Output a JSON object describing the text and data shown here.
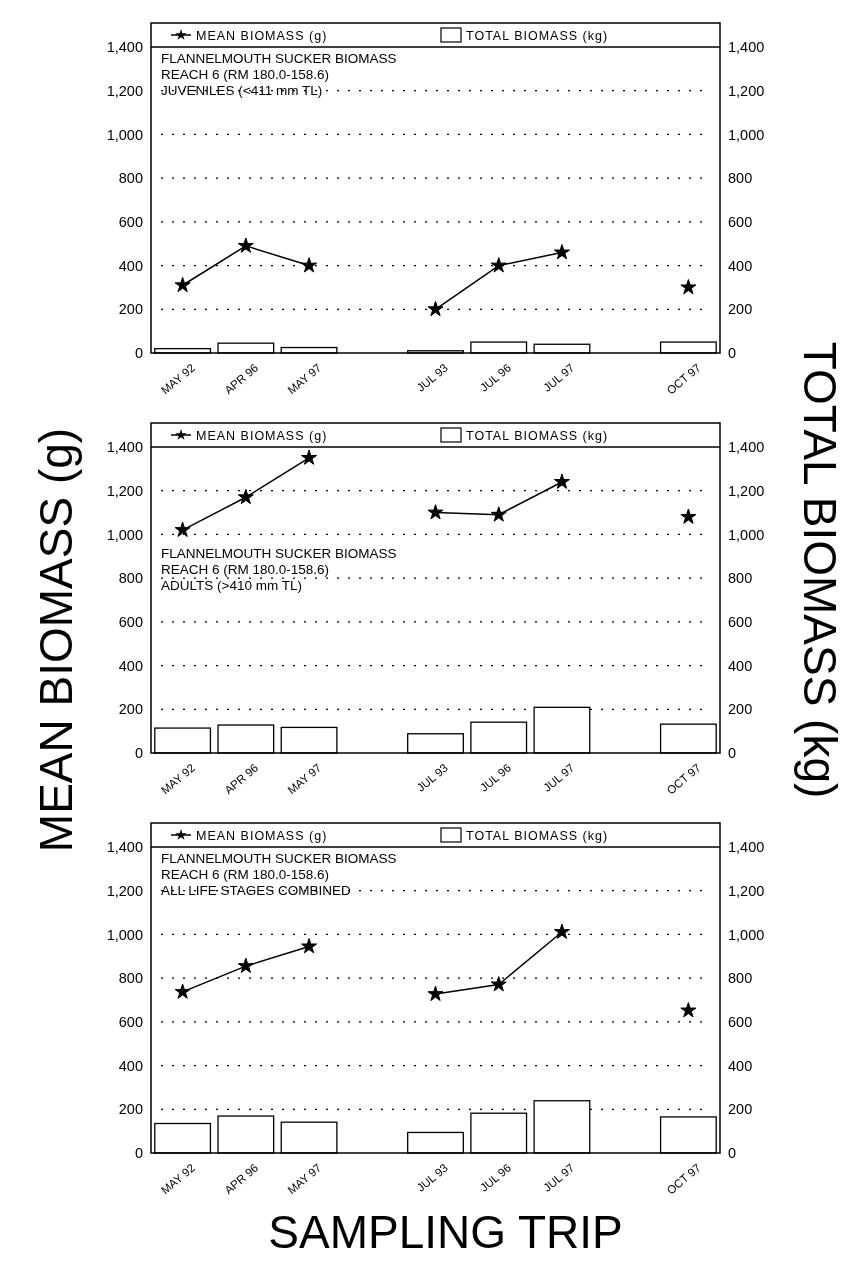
{
  "chart_data": [
    {
      "type": "bar",
      "title": "FLANNELMOUTH SUCKER BIOMASS",
      "subtitle": "REACH 6 (RM 180.0-158.6)",
      "annotations": [
        "JUVENILES (<411 mm TL)"
      ],
      "categories": [
        "MAY 92",
        "APR 96",
        "MAY 97",
        null,
        "JUL 93",
        "JUL 96",
        "JUL 97",
        null,
        "OCT 97"
      ],
      "series": [
        {
          "name": "MEAN BIOMASS (g)",
          "type": "line",
          "color": "#000000",
          "marker": "star",
          "values": [
            310,
            490,
            400,
            null,
            200,
            400,
            460,
            null,
            300
          ]
        },
        {
          "name": "TOTAL BIOMASS (kg)",
          "type": "bar",
          "axis": "y2",
          "color": "#ffffff",
          "values": [
            20,
            45,
            25,
            null,
            10,
            50,
            40,
            null,
            50
          ]
        }
      ],
      "ylim": [
        0,
        1400
      ],
      "yticks": [
        0,
        200,
        400,
        600,
        800,
        {
          "value": 1000,
          "label": "1,000"
        },
        {
          "value": 1200,
          "label": "1,200"
        },
        {
          "value": 1400,
          "label": "1,400"
        }
      ],
      "y2lim": [
        0,
        1400
      ],
      "y2ticks": [
        0,
        200,
        400,
        600,
        800,
        {
          "value": 1000,
          "label": "1,000"
        },
        {
          "value": 1200,
          "label": "1,200"
        },
        {
          "value": 1400,
          "label": "1,400"
        }
      ],
      "grid": "y",
      "legend": "top"
    },
    {
      "type": "bar",
      "title": "FLANNELMOUTH SUCKER BIOMASS",
      "subtitle": "REACH 6 (RM 180.0-158.6)",
      "annotations": [
        "ADULTS (>410 mm TL)"
      ],
      "ylabel": "MEAN BIOMASS (g)",
      "y2label": "TOTAL BIOMASS (kg)",
      "categories": [
        "MAY 92",
        "APR 96",
        "MAY 97",
        null,
        "JUL 93",
        "JUL 96",
        "JUL 97",
        null,
        "OCT 97"
      ],
      "series": [
        {
          "name": "MEAN BIOMASS (g)",
          "type": "line",
          "color": "#000000",
          "marker": "star",
          "values": [
            1020,
            1170,
            1350,
            null,
            1100,
            1090,
            1240,
            null,
            1080
          ]
        },
        {
          "name": "TOTAL BIOMASS (kg)",
          "type": "bar",
          "axis": "y2",
          "color": "#ffffff",
          "values": [
            114,
            128,
            117,
            null,
            88,
            141,
            209,
            null,
            132
          ]
        }
      ],
      "ylim": [
        0,
        1400
      ],
      "yticks": [
        0,
        200,
        400,
        600,
        800,
        {
          "value": 1000,
          "label": "1,000"
        },
        {
          "value": 1200,
          "label": "1,200"
        },
        {
          "value": 1400,
          "label": "1,400"
        }
      ],
      "y2lim": [
        0,
        1400
      ],
      "y2ticks": [
        0,
        200,
        400,
        600,
        800,
        {
          "value": 1000,
          "label": "1,000"
        },
        {
          "value": 1200,
          "label": "1,200"
        },
        {
          "value": 1400,
          "label": "1,400"
        }
      ],
      "grid": "y",
      "legend": "top"
    },
    {
      "type": "bar",
      "title": "FLANNELMOUTH SUCKER BIOMASS",
      "subtitle": "REACH 6 (RM 180.0-158.6)",
      "annotations": [
        "ALL LIFE STAGES COMBINED"
      ],
      "xlabel": "SAMPLING TRIP",
      "categories": [
        "MAY 92",
        "APR 96",
        "MAY 97",
        null,
        "JUL 93",
        "JUL 96",
        "JUL 97",
        null,
        "OCT 97"
      ],
      "series": [
        {
          "name": "MEAN BIOMASS (g)",
          "type": "line",
          "color": "#000000",
          "marker": "star",
          "values": [
            737,
            855,
            945,
            null,
            727,
            771,
            1011,
            null,
            652
          ]
        },
        {
          "name": "TOTAL BIOMASS (kg)",
          "type": "bar",
          "axis": "y2",
          "color": "#ffffff",
          "values": [
            135,
            169,
            141,
            null,
            94,
            182,
            239,
            null,
            165
          ]
        }
      ],
      "ylim": [
        0,
        1400
      ],
      "yticks": [
        0,
        200,
        400,
        600,
        800,
        {
          "value": 1000,
          "label": "1,000"
        },
        {
          "value": 1200,
          "label": "1,200"
        },
        {
          "value": 1400,
          "label": "1,400"
        }
      ],
      "y2lim": [
        0,
        1400
      ],
      "y2ticks": [
        0,
        200,
        400,
        600,
        800,
        {
          "value": 1000,
          "label": "1,000"
        },
        {
          "value": 1200,
          "label": "1,200"
        },
        {
          "value": 1400,
          "label": "1,400"
        }
      ],
      "grid": "y",
      "legend": "top"
    }
  ]
}
